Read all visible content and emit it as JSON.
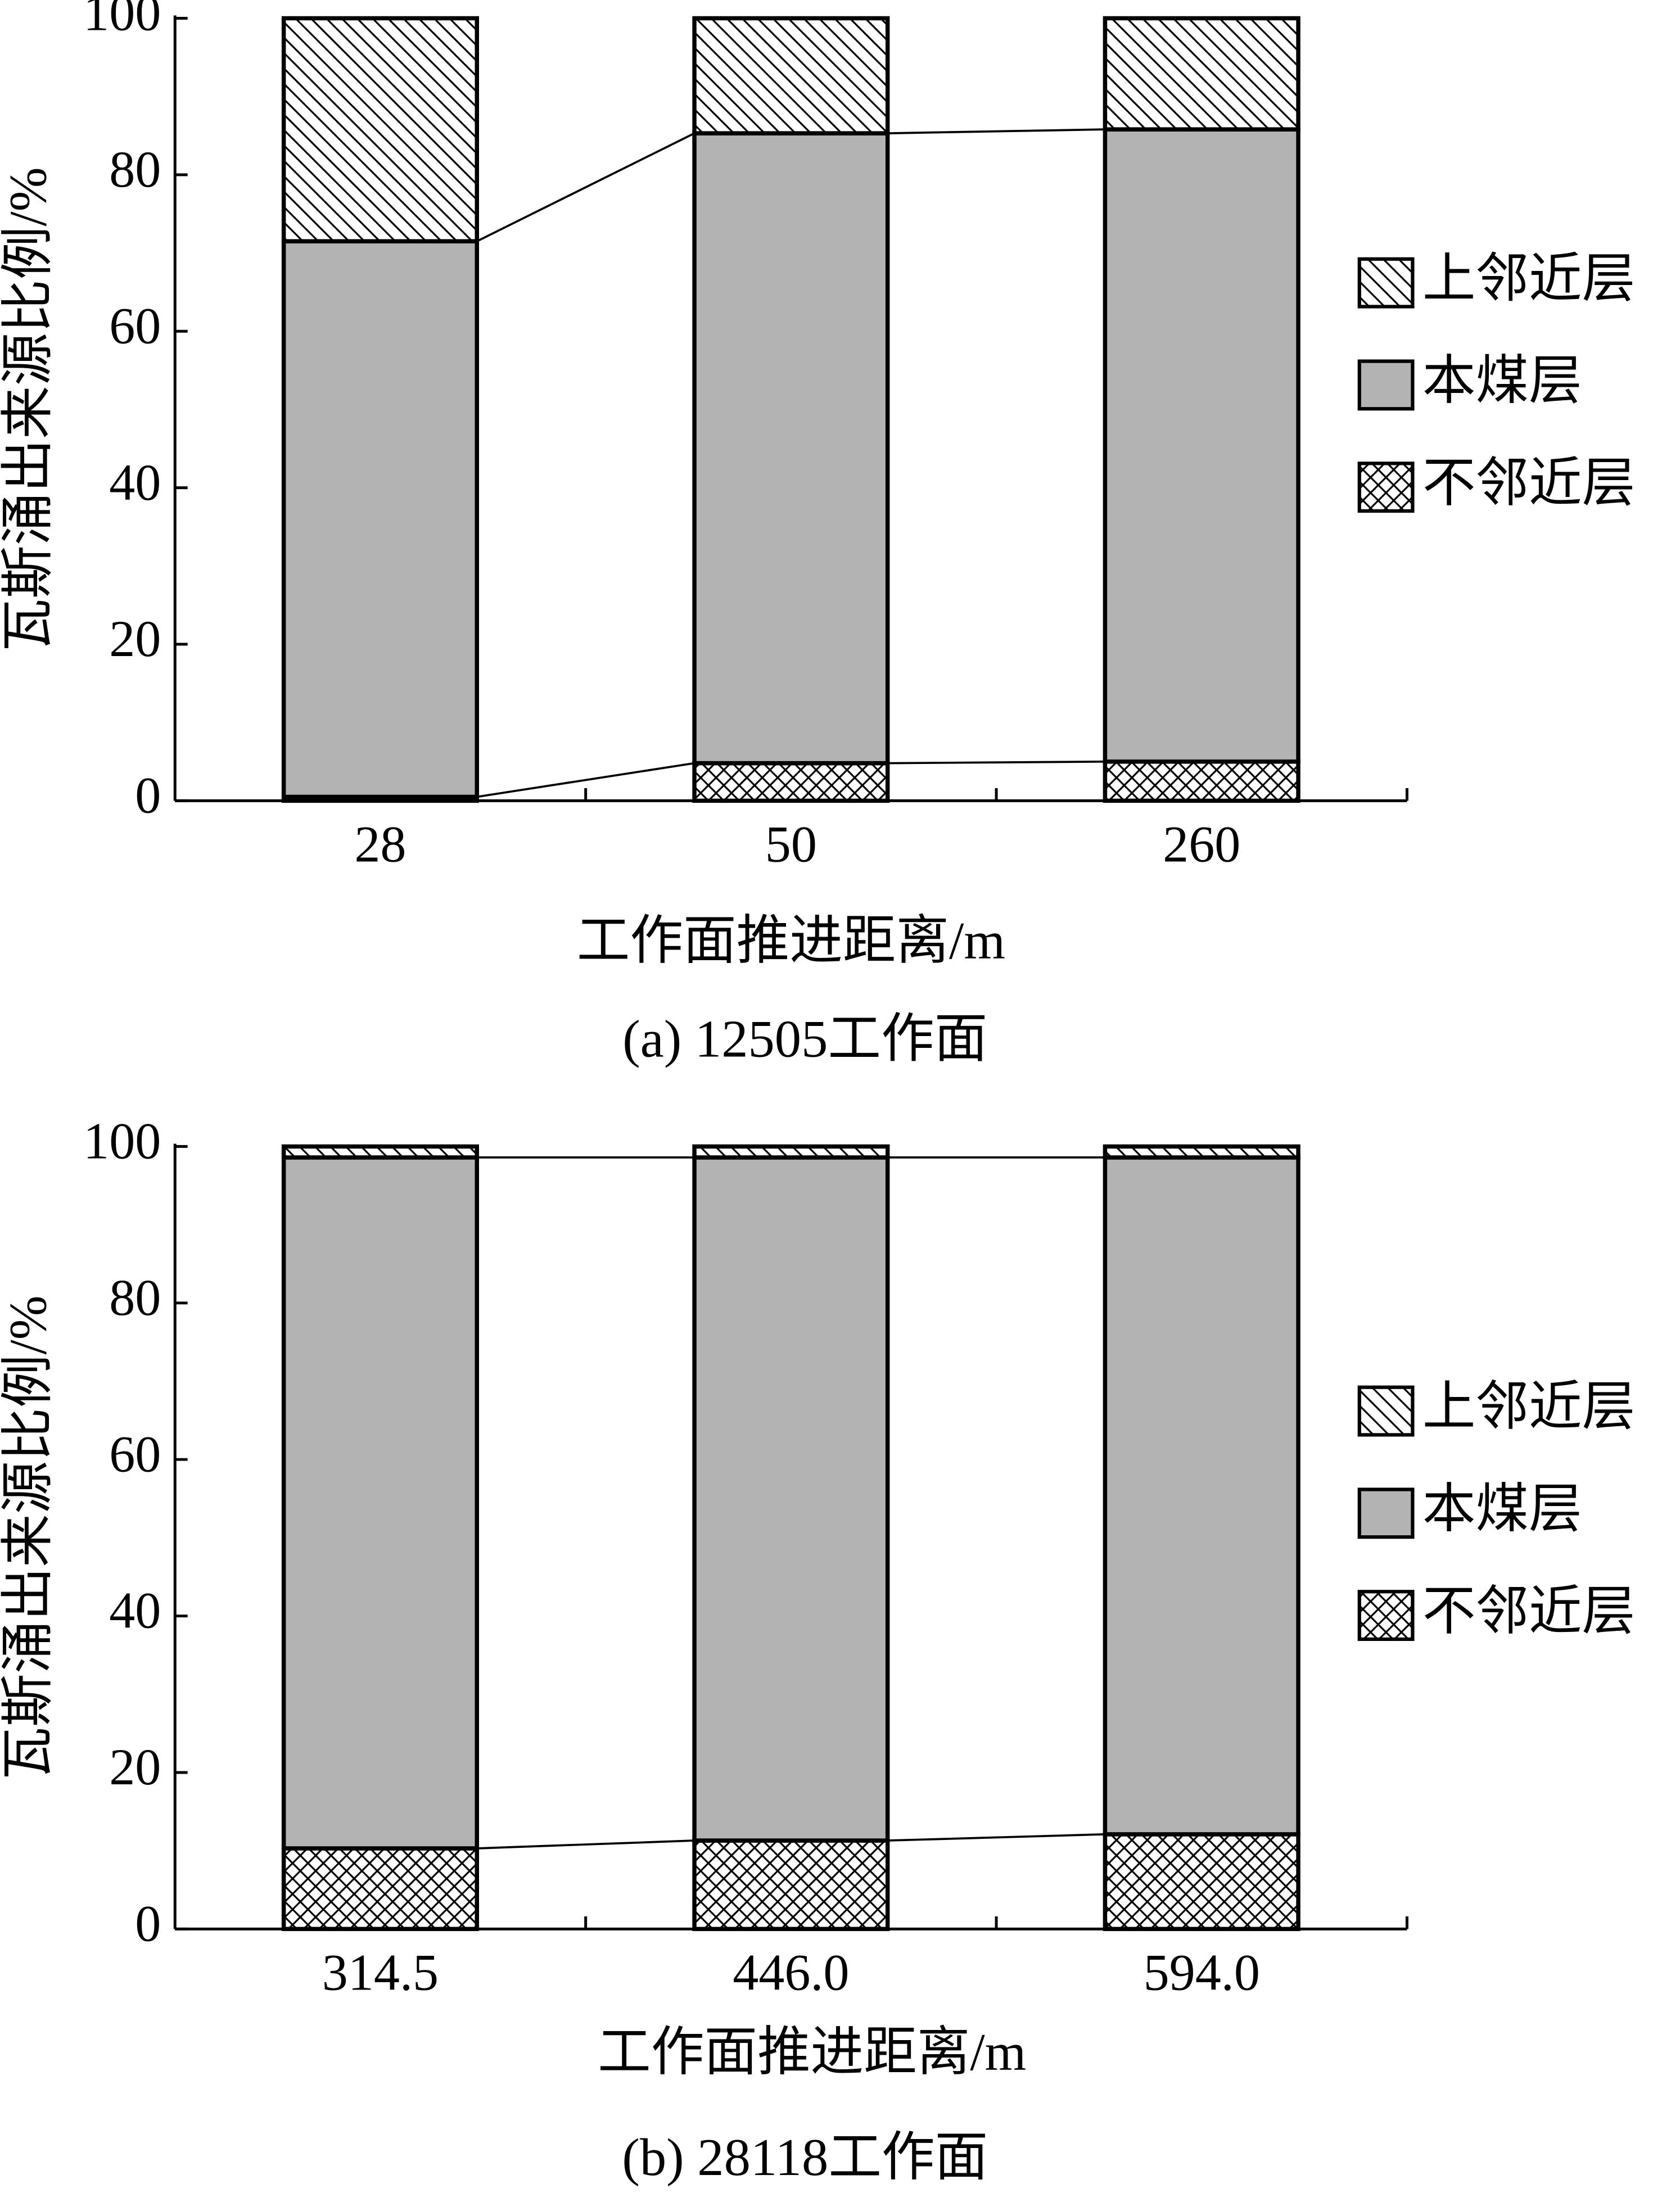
{
  "chart_data": [
    {
      "type": "stacked_bar",
      "caption": "(a)  12505工作面",
      "xlabel": "工作面推进距离/m",
      "ylabel": "瓦斯涌出来源比例/%",
      "categories": [
        "28",
        "50",
        "260"
      ],
      "series": [
        {
          "name": "不邻近层",
          "color": "#ffffff",
          "pattern": "cross",
          "values": [
            0.5,
            4.8,
            5.0
          ]
        },
        {
          "name": "本煤层",
          "color": "#b3b3b3",
          "pattern": "solid",
          "values": [
            71.0,
            80.5,
            80.8
          ]
        },
        {
          "name": "上邻近层",
          "color": "#ffffff",
          "pattern": "diagonal",
          "values": [
            28.5,
            14.7,
            14.2
          ]
        }
      ],
      "ylim": [
        0,
        100
      ],
      "yticks": [
        0,
        20,
        40,
        60,
        80,
        100
      ]
    },
    {
      "type": "stacked_bar",
      "caption": "(b)  28118工作面",
      "xlabel": "工作面推进距离/m",
      "ylabel": "瓦斯涌出来源比例/%",
      "categories": [
        "314.5",
        "446.0",
        "594.0"
      ],
      "series": [
        {
          "name": "不邻近层",
          "color": "#ffffff",
          "pattern": "cross",
          "values": [
            10.3,
            11.3,
            12.1
          ]
        },
        {
          "name": "本煤层",
          "color": "#b3b3b3",
          "pattern": "solid",
          "values": [
            88.3,
            87.3,
            86.5
          ]
        },
        {
          "name": "上邻近层",
          "color": "#ffffff",
          "pattern": "diagonal",
          "values": [
            1.4,
            1.4,
            1.4
          ]
        }
      ],
      "ylim": [
        0,
        100
      ],
      "yticks": [
        0,
        20,
        40,
        60,
        80,
        100
      ]
    }
  ]
}
